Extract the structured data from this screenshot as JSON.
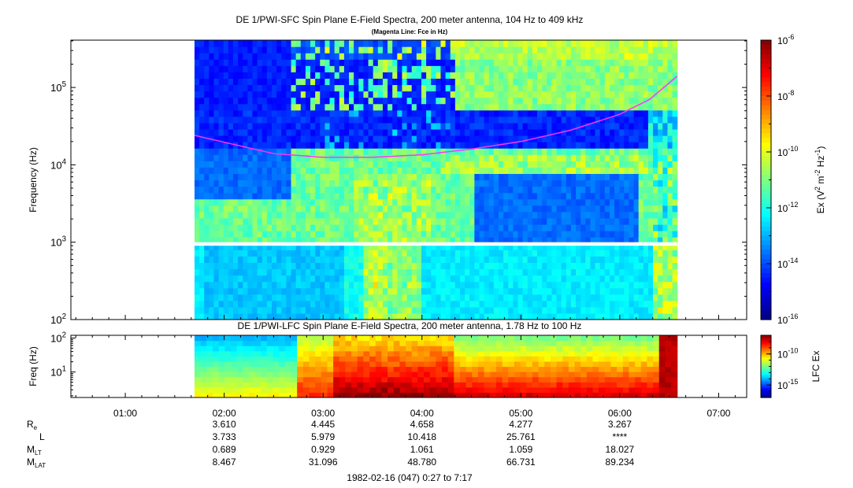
{
  "chart_data": [
    {
      "type": "heatmap",
      "title": "DE 1/PWI-SFC  Spin Plane E-Field Spectra, 200 meter antenna, 104 Hz to 409 kHz",
      "subtitle": "(Magenta Line: Fce in Hz)",
      "ylabel": "Frequency (Hz)",
      "y_scale": "log",
      "ylim": [
        100,
        409000
      ],
      "y_ticks": [
        {
          "v": 100,
          "b": "10",
          "e": "2"
        },
        {
          "v": 1000,
          "b": "10",
          "e": "3"
        },
        {
          "v": 10000,
          "b": "10",
          "e": "4"
        },
        {
          "v": 100000,
          "b": "10",
          "e": "5"
        }
      ],
      "data_start_hour": 1.7,
      "data_end_hour": 6.58,
      "gap_hz": [
        900,
        1000
      ],
      "colorbar": {
        "label": "Ex (V",
        "label_parts": [
          "Ex (V",
          "2",
          " m",
          "-2",
          " Hz",
          "-1",
          ")"
        ],
        "scale": "log",
        "range": [
          -16,
          -6
        ],
        "ticks": [
          {
            "v": -6,
            "b": "10",
            "e": "-6"
          },
          {
            "v": -8,
            "b": "10",
            "e": "-8"
          },
          {
            "v": -10,
            "b": "10",
            "e": "-10"
          },
          {
            "v": -12,
            "b": "10",
            "e": "-12"
          },
          {
            "v": -14,
            "b": "10",
            "e": "-14"
          },
          {
            "v": -16,
            "b": "10",
            "e": "-16"
          }
        ]
      },
      "fce_line": {
        "color": "#ff33ff",
        "hours": [
          1.7,
          2.5,
          3.0,
          3.5,
          4.0,
          4.5,
          5.0,
          5.5,
          6.0,
          6.3,
          6.58
        ],
        "hz": [
          24000,
          14000,
          12500,
          12500,
          13500,
          16000,
          20000,
          28000,
          45000,
          70000,
          140000
        ]
      },
      "features": {
        "band_step_hz": 55000,
        "band_hz": 17000
      }
    },
    {
      "type": "heatmap",
      "title": "DE 1/PWI-LFC  Spin Plane E-Field Spectra, 200 meter antenna, 1.78 Hz to 100 Hz",
      "ylabel": "Freq (Hz)",
      "y_scale": "log",
      "ylim": [
        1.78,
        120
      ],
      "y_ticks": [
        {
          "v": 10,
          "b": "10",
          "e": "1"
        },
        {
          "v": 100,
          "b": "10",
          "e": "2"
        }
      ],
      "data_start_hour": 1.7,
      "data_end_hour": 6.58,
      "colorbar": {
        "label": "LFC Ex",
        "scale": "log",
        "range": [
          -17,
          -7
        ],
        "ticks": [
          {
            "v": -10,
            "b": "10",
            "e": "-10"
          },
          {
            "v": -15,
            "b": "10",
            "e": "-15"
          }
        ]
      }
    }
  ],
  "x_axis": {
    "xlim": [
      0.45,
      7.283
    ],
    "ticks": [
      {
        "h": 1,
        "label": "01:00"
      },
      {
        "h": 2,
        "label": "02:00"
      },
      {
        "h": 3,
        "label": "03:00"
      },
      {
        "h": 4,
        "label": "04:00"
      },
      {
        "h": 5,
        "label": "05:00"
      },
      {
        "h": 6,
        "label": "06:00"
      },
      {
        "h": 7,
        "label": "07:00"
      }
    ],
    "minor_step_hours": 0.1667
  },
  "ephemeris": {
    "rows": [
      {
        "name": "R",
        "sub": "e",
        "values": [
          "3.610",
          "4.445",
          "4.658",
          "4.277",
          "3.267"
        ]
      },
      {
        "name": "L",
        "sub": "",
        "values": [
          "3.733",
          "5.979",
          "10.418",
          "25.761",
          "****"
        ]
      },
      {
        "name": "M",
        "sub": "LT",
        "values": [
          "0.689",
          "0.929",
          "1.061",
          "1.059",
          "18.027"
        ]
      },
      {
        "name": "M",
        "sub": "LAT",
        "values": [
          "8.467",
          "31.096",
          "48.780",
          "66.731",
          "89.234"
        ]
      }
    ]
  },
  "footer": "1982-02-16 (047) 0:27 to 7:17",
  "colors": {
    "magenta_line": "#ff33ff",
    "frame": "#000000",
    "gap": "#ffffff"
  }
}
